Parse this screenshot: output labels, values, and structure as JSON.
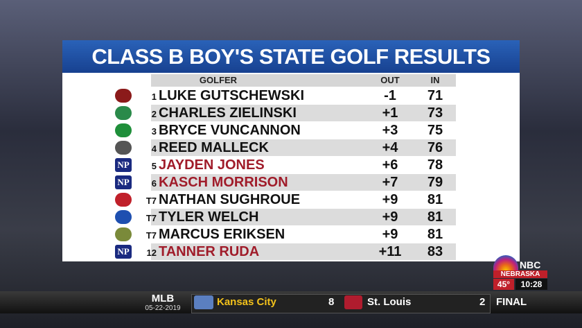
{
  "title": "CLASS B BOY'S STATE GOLF RESULTS",
  "columns": {
    "golfer": "GOLFER",
    "out": "OUT",
    "in": "IN"
  },
  "rows": [
    {
      "rank": "1",
      "name": "LUKE GUTSCHEWSKI",
      "out": "-1",
      "in": "71"
    },
    {
      "rank": "2",
      "name": "CHARLES ZIELINSKI",
      "out": "+1",
      "in": "73"
    },
    {
      "rank": "3",
      "name": "BRYCE VUNCANNON",
      "out": "+3",
      "in": "75"
    },
    {
      "rank": "4",
      "name": "REED MALLECK",
      "out": "+4",
      "in": "76"
    },
    {
      "rank": "5",
      "name": "JAYDEN JONES",
      "out": "+6",
      "in": "78",
      "logo": "NP"
    },
    {
      "rank": "6",
      "name": "KASCH MORRISON",
      "out": "+7",
      "in": "79",
      "logo": "NP"
    },
    {
      "rank": "T7",
      "name": "NATHAN SUGHROUE",
      "out": "+9",
      "in": "81"
    },
    {
      "rank": "T7",
      "name": "TYLER WELCH",
      "out": "+9",
      "in": "81"
    },
    {
      "rank": "T7",
      "name": "MARCUS ERIKSEN",
      "out": "+9",
      "in": "81"
    },
    {
      "rank": "12",
      "name": "TANNER RUDA",
      "out": "+11",
      "in": "83",
      "logo": "NP"
    }
  ],
  "bug": {
    "network": "NBC",
    "station": "NEBRASKA",
    "temp": "45°",
    "time": "10:28"
  },
  "ticker": {
    "league": "MLB",
    "date": "05-22-2019",
    "away": "Kansas City",
    "away_score": "8",
    "home": "St. Louis",
    "home_score": "2",
    "status": "FINAL"
  }
}
